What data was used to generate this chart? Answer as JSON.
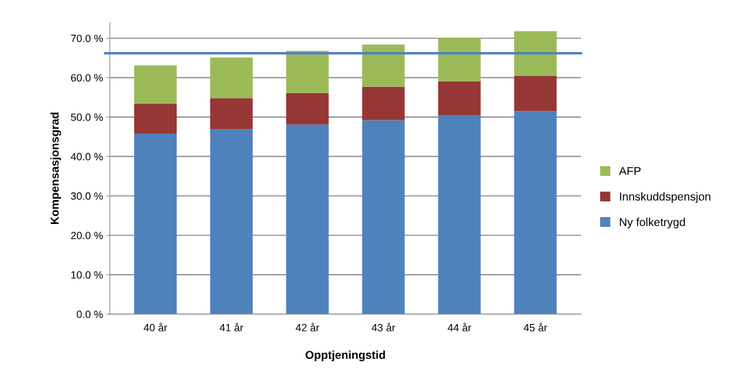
{
  "chart_data": {
    "type": "bar",
    "stacked": true,
    "xlabel": "Opptjeningstid",
    "ylabel": "Kompensasjonsgrad",
    "categories": [
      "40 år",
      "41 år",
      "42 år",
      "43 år",
      "44 år",
      "45 år"
    ],
    "series": [
      {
        "name": "Ny folketrygd",
        "color": "#4f81bd",
        "values": [
          45.8,
          46.9,
          48.1,
          49.2,
          50.5,
          51.5
        ]
      },
      {
        "name": "Innskuddspensjon",
        "color": "#953735",
        "values": [
          7.6,
          7.9,
          8.0,
          8.5,
          8.6,
          8.9
        ]
      },
      {
        "name": "AFP",
        "color": "#9bbb59",
        "values": [
          9.7,
          10.3,
          10.7,
          10.7,
          11.0,
          11.4
        ]
      }
    ],
    "ylim": [
      0,
      74
    ],
    "yticks": [
      {
        "value": 0,
        "label": "0.0 %"
      },
      {
        "value": 10,
        "label": "10.0 %"
      },
      {
        "value": 20,
        "label": "20.0 %"
      },
      {
        "value": 30,
        "label": "30.0 %"
      },
      {
        "value": 40,
        "label": "40.0 %"
      },
      {
        "value": 50,
        "label": "50.0 %"
      },
      {
        "value": 60,
        "label": "60.0 %"
      },
      {
        "value": 70,
        "label": "70.0 %"
      }
    ],
    "ref_lines": [
      {
        "axis": "y",
        "value": 66.2,
        "color": "#4f81bd"
      }
    ],
    "grid": "y",
    "legend": "right"
  }
}
